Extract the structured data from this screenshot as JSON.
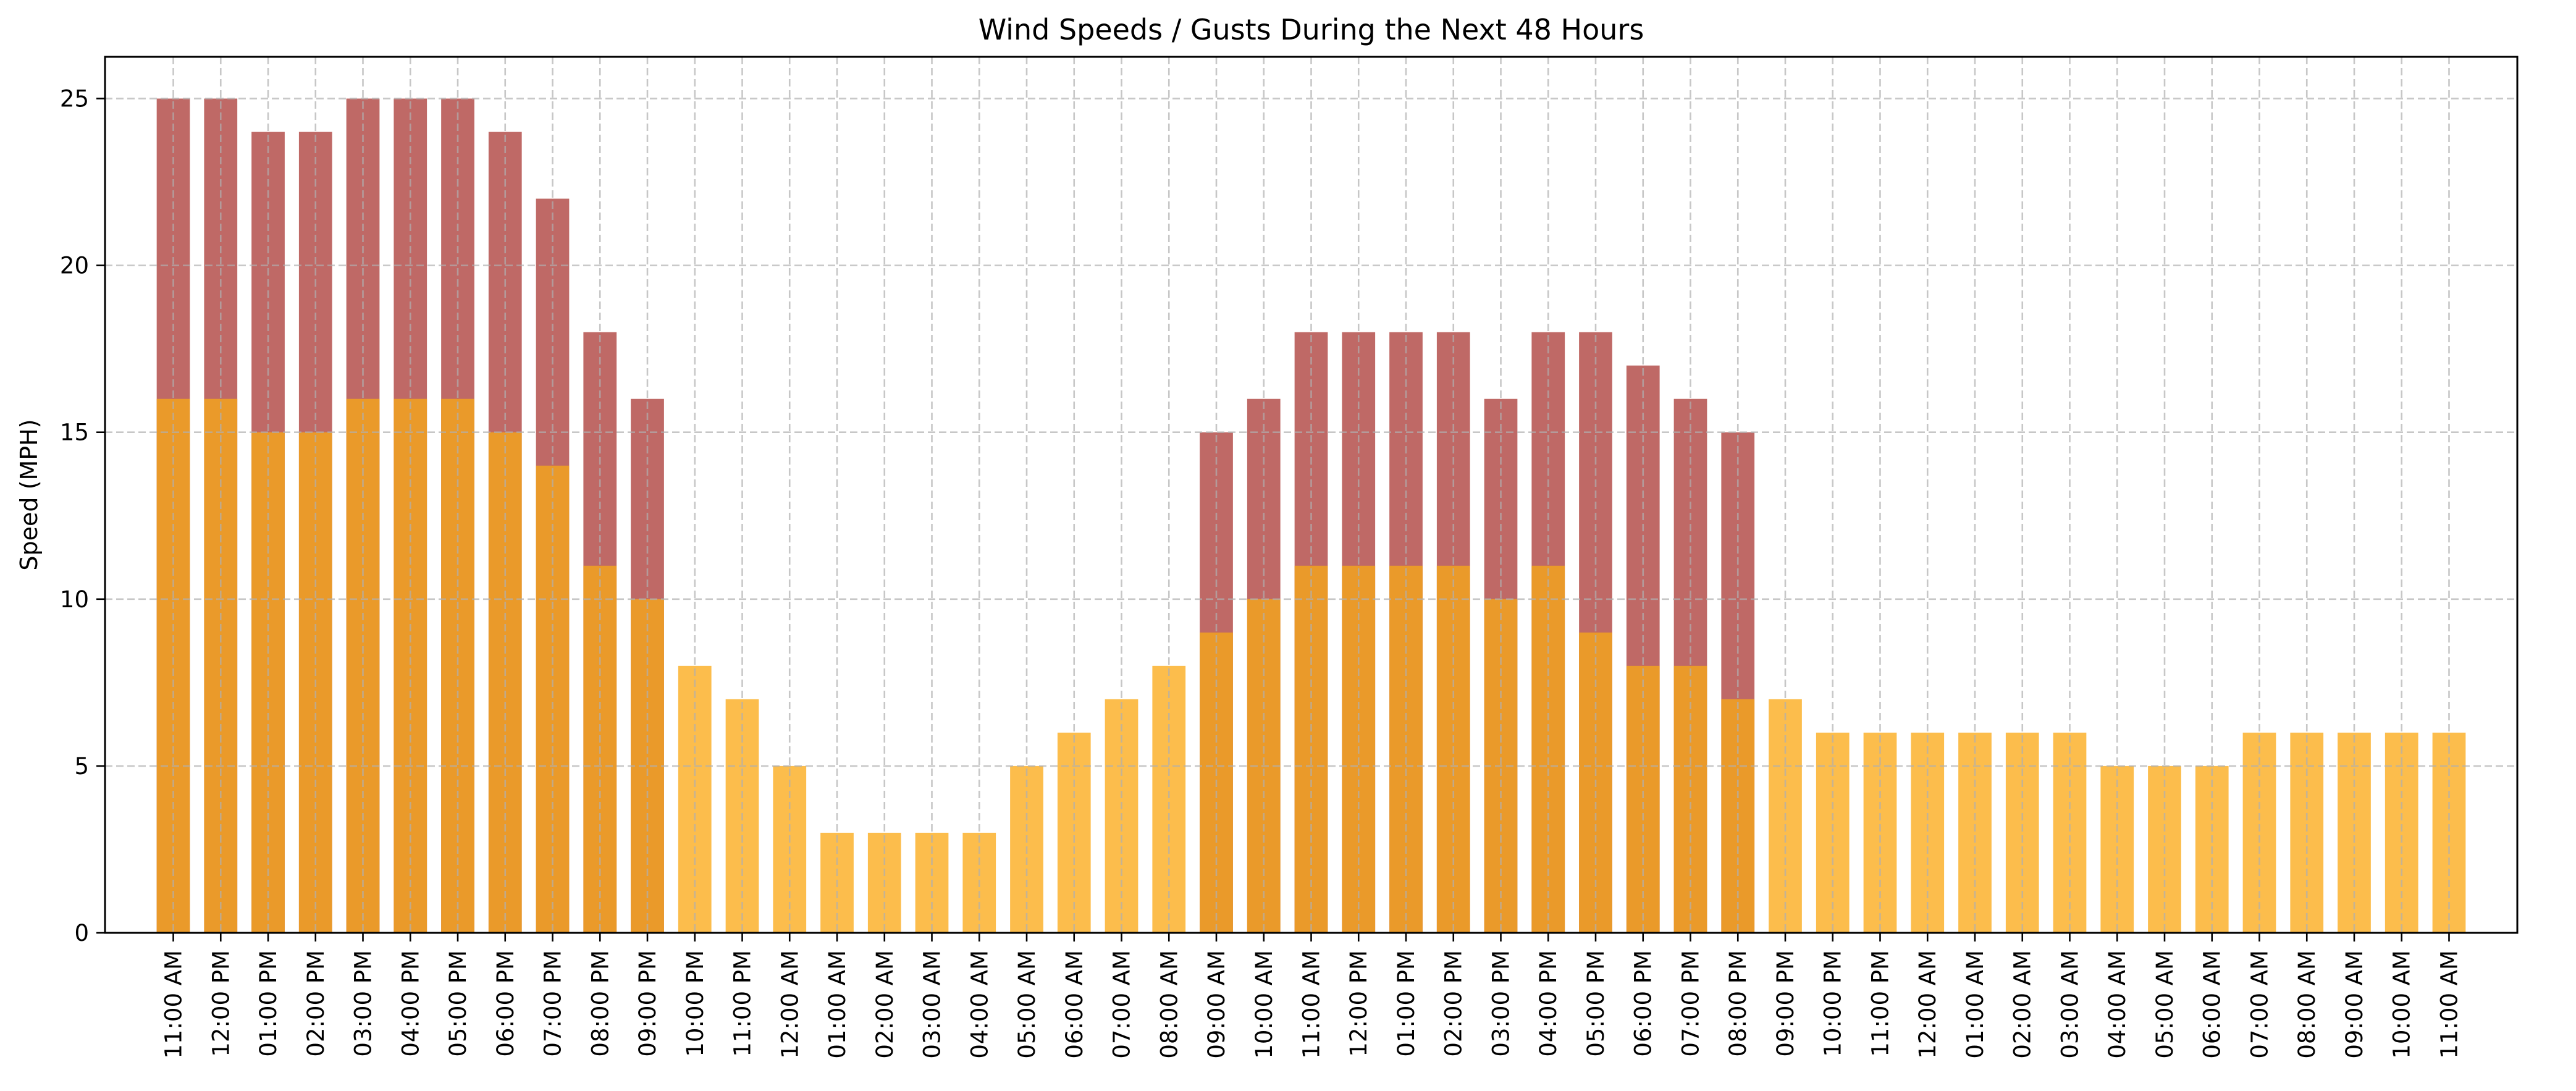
{
  "chart_data": {
    "type": "bar",
    "title": "Wind Speeds / Gusts During the Next 48 Hours",
    "ylabel": "Speed (MPH)",
    "xlabel": "",
    "ylim": [
      0,
      26.25
    ],
    "yticks": [
      0,
      5,
      10,
      15,
      20,
      25
    ],
    "grid": true,
    "legend": "none",
    "colors": {
      "gust": "#bf6966",
      "speed": "#ea9a2a",
      "speed_light": "#fcbd4c"
    },
    "categories": [
      "11:00 AM",
      "12:00 PM",
      "01:00 PM",
      "02:00 PM",
      "03:00 PM",
      "04:00 PM",
      "05:00 PM",
      "06:00 PM",
      "07:00 PM",
      "08:00 PM",
      "09:00 PM",
      "10:00 PM",
      "11:00 PM",
      "12:00 AM",
      "01:00 AM",
      "02:00 AM",
      "03:00 AM",
      "04:00 AM",
      "05:00 AM",
      "06:00 AM",
      "07:00 AM",
      "08:00 AM",
      "09:00 AM",
      "10:00 AM",
      "11:00 AM",
      "12:00 PM",
      "01:00 PM",
      "02:00 PM",
      "03:00 PM",
      "04:00 PM",
      "05:00 PM",
      "06:00 PM",
      "07:00 PM",
      "08:00 PM",
      "09:00 PM",
      "10:00 PM",
      "11:00 PM",
      "12:00 AM",
      "01:00 AM",
      "02:00 AM",
      "03:00 AM",
      "04:00 AM",
      "05:00 AM",
      "06:00 AM",
      "07:00 AM",
      "08:00 AM",
      "09:00 AM",
      "10:00 AM",
      "11:00 AM"
    ],
    "series": [
      {
        "role": "gusts",
        "values": [
          25,
          25,
          24,
          24,
          25,
          25,
          25,
          24,
          22,
          18,
          16,
          null,
          null,
          null,
          null,
          null,
          null,
          null,
          null,
          null,
          null,
          null,
          15,
          16,
          18,
          18,
          18,
          18,
          16,
          18,
          18,
          17,
          16,
          15,
          null,
          null,
          null,
          null,
          null,
          null,
          null,
          null,
          null,
          null,
          null,
          null,
          null,
          null,
          null
        ]
      },
      {
        "role": "speed",
        "values": [
          16,
          16,
          15,
          15,
          16,
          16,
          16,
          15,
          14,
          11,
          10,
          8,
          7,
          5,
          3,
          3,
          3,
          3,
          5,
          6,
          7,
          8,
          9,
          10,
          11,
          11,
          11,
          11,
          10,
          11,
          9,
          8,
          8,
          7,
          7,
          6,
          6,
          6,
          6,
          6,
          6,
          5,
          5,
          5,
          6,
          6,
          6,
          6,
          6
        ]
      }
    ]
  }
}
